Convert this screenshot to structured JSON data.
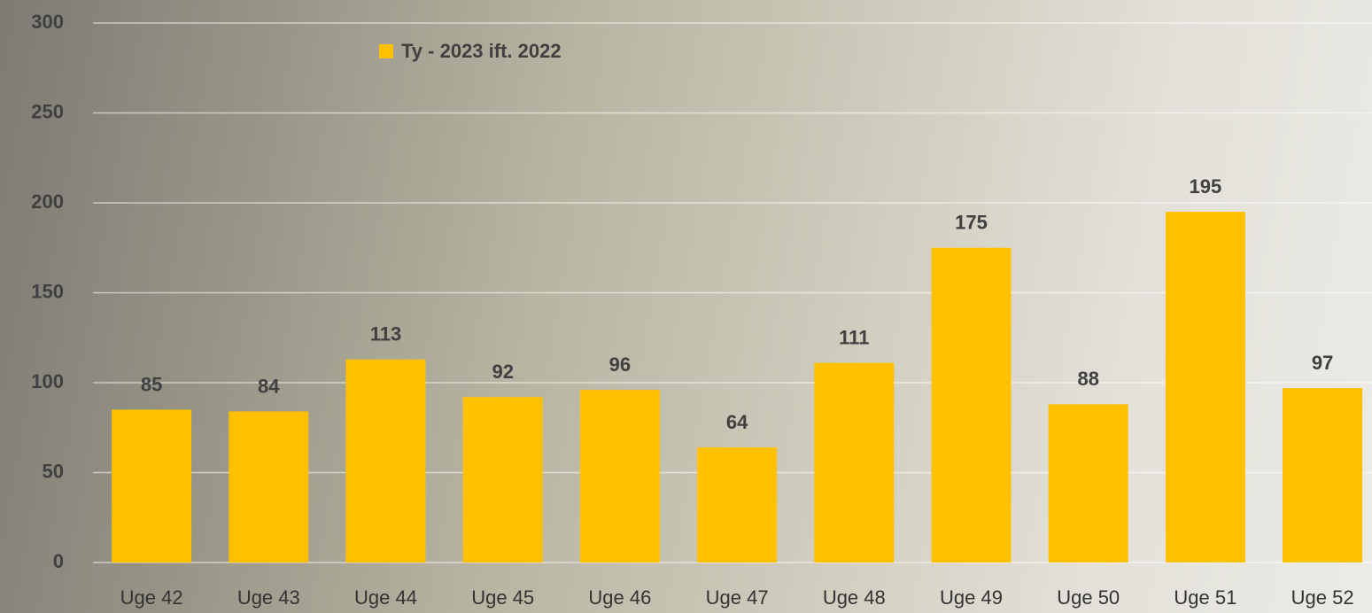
{
  "chart_data": {
    "type": "bar",
    "categories": [
      "Uge 42",
      "Uge 43",
      "Uge 44",
      "Uge 45",
      "Uge 46",
      "Uge 47",
      "Uge 48",
      "Uge 49",
      "Uge 50",
      "Uge 51",
      "Uge 52"
    ],
    "series": [
      {
        "name": "Ty - 2023 ift. 2022",
        "color": "#ffc000",
        "values": [
          85,
          84,
          113,
          92,
          96,
          64,
          111,
          175,
          88,
          195,
          97
        ]
      }
    ],
    "ylim": [
      0,
      300
    ],
    "yticks": [
      0,
      50,
      100,
      150,
      200,
      250,
      300
    ],
    "grid": true,
    "legend": "top-left"
  }
}
